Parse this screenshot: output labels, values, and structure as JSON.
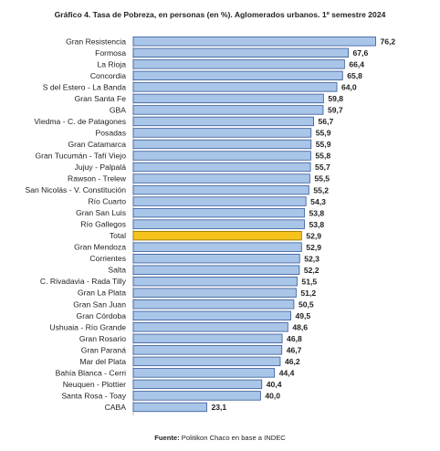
{
  "chart_data": {
    "type": "bar",
    "orientation": "horizontal",
    "title": "Gráfico 4. Tasa de Pobreza, en personas (en %). Aglomerados urbanos. 1º semestre 2024",
    "categories": [
      "Gran Resistencia",
      "Formosa",
      "La Rioja",
      "Concordia",
      "S del Estero - La Banda",
      "Gran Santa Fe",
      "GBA",
      "Viedma - C. de Patagones",
      "Posadas",
      "Gran Catamarca",
      "Gran Tucumán - Tafí Viejo",
      "Jujuy - Palpalá",
      "Rawson - Trelew",
      "San Nicolás - V. Constitución",
      "Río Cuarto",
      "Gran San Luis",
      "Río Gallegos",
      "Total",
      "Gran Mendoza",
      "Corrientes",
      "Salta",
      "C. Rivadavia - Rada Tilly",
      "Gran La Plata",
      "Gran San Juan",
      "Gran Córdoba",
      "Ushuaia - Río Grande",
      "Gran Rosario",
      "Gran Paraná",
      "Mar del Plata",
      "Bahía Blanca - Cerri",
      "Neuquen - Plottier",
      "Santa Rosa - Toay",
      "CABA"
    ],
    "values": [
      76.2,
      67.6,
      66.4,
      65.8,
      64.0,
      59.8,
      59.7,
      56.7,
      55.9,
      55.9,
      55.8,
      55.7,
      55.5,
      55.2,
      54.3,
      53.8,
      53.8,
      52.9,
      52.9,
      52.3,
      52.2,
      51.5,
      51.2,
      50.5,
      49.5,
      48.6,
      46.8,
      46.7,
      46.2,
      44.4,
      40.4,
      40.0,
      23.1
    ],
    "value_labels": [
      "76,2",
      "67,6",
      "66,4",
      "65,8",
      "64,0",
      "59,8",
      "59,7",
      "56,7",
      "55,9",
      "55,9",
      "55,8",
      "55,7",
      "55,5",
      "55,2",
      "54,3",
      "53,8",
      "53,8",
      "52,9",
      "52,9",
      "52,3",
      "52,2",
      "51,5",
      "51,2",
      "50,5",
      "49,5",
      "48,6",
      "46,8",
      "46,7",
      "46,2",
      "44,4",
      "40,4",
      "40,0",
      "23,1"
    ],
    "highlight_category": "Total",
    "colors": {
      "bar_fill": "#a9c6e8",
      "bar_stroke": "#2f5597",
      "highlight_fill": "#f5c31c",
      "highlight_stroke": "#8a6d00"
    },
    "grid": false,
    "legend": "none"
  },
  "source": {
    "label": "Fuente:",
    "text": " Politikon Chaco en base a INDEC"
  }
}
